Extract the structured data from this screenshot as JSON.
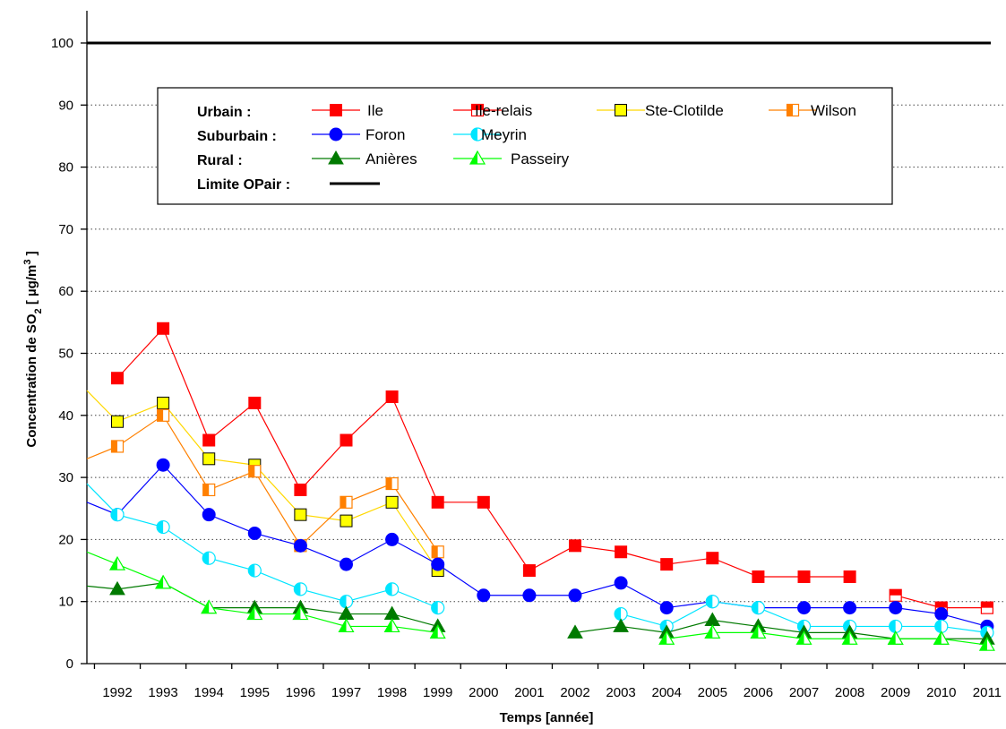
{
  "chart_data": {
    "type": "line",
    "xlabel": "Temps [année]",
    "ylabel": "Concentration de SO",
    "ylabel_sub": "2",
    "ylabel_unit": " [ µg/m",
    "ylabel_sup": "3",
    "ylabel_end": " ]",
    "x": [
      "1992",
      "1993",
      "1994",
      "1995",
      "1996",
      "1997",
      "1998",
      "1999",
      "2000",
      "2001",
      "2002",
      "2003",
      "2004",
      "2005",
      "2006",
      "2007",
      "2008",
      "2009",
      "2010",
      "2011"
    ],
    "ylim": [
      0,
      100
    ],
    "yticks": [
      0,
      10,
      20,
      30,
      40,
      50,
      60,
      70,
      80,
      90,
      100
    ],
    "grid": "horizontal dotted",
    "legend_position": "top-center",
    "limit": {
      "label": "Limite OPair :",
      "value": 100,
      "color": "#000000"
    },
    "groups": {
      "urbain": "Urbain :",
      "suburbain": "Suburbain :",
      "rural": "Rural :"
    },
    "series": [
      {
        "name": "Ile",
        "group": "urbain",
        "color": "#ff0000",
        "marker": "square-filled",
        "start": null,
        "values": [
          46,
          54,
          36,
          42,
          28,
          36,
          43,
          26,
          26,
          15,
          19,
          18,
          16,
          17,
          14,
          14,
          14,
          null,
          null,
          null
        ]
      },
      {
        "name": "Ile-relais",
        "group": "urbain",
        "color": "#ff0000",
        "marker": "square-half-top",
        "start": null,
        "values": [
          null,
          null,
          null,
          null,
          null,
          null,
          null,
          null,
          null,
          null,
          null,
          null,
          null,
          null,
          null,
          null,
          null,
          11,
          9,
          9
        ]
      },
      {
        "name": "Ste-Clotilde",
        "group": "urbain",
        "color": "#ffff00",
        "marker": "square-yellow",
        "start": 44,
        "values": [
          39,
          42,
          33,
          32,
          24,
          23,
          26,
          15,
          null,
          null,
          null,
          null,
          null,
          null,
          null,
          null,
          null,
          null,
          null,
          null
        ]
      },
      {
        "name": "Wilson",
        "group": "urbain",
        "color": "#ff8000",
        "marker": "square-half-left",
        "start": 33,
        "values": [
          35,
          40,
          28,
          31,
          19,
          26,
          29,
          18,
          null,
          null,
          null,
          null,
          null,
          null,
          null,
          null,
          null,
          null,
          null,
          null
        ]
      },
      {
        "name": "Foron",
        "group": "suburbain",
        "color": "#0000ff",
        "marker": "circle-filled",
        "start": 26,
        "values": [
          24,
          32,
          24,
          21,
          19,
          16,
          20,
          16,
          11,
          11,
          11,
          13,
          9,
          10,
          9,
          9,
          9,
          9,
          8,
          6
        ]
      },
      {
        "name": "Meyrin",
        "group": "suburbain",
        "color": "#00e5ff",
        "marker": "circle-half",
        "start": 29,
        "values": [
          24,
          22,
          17,
          15,
          12,
          10,
          12,
          9,
          null,
          null,
          null,
          8,
          6,
          10,
          9,
          6,
          6,
          6,
          6,
          5
        ]
      },
      {
        "name": "Anières",
        "group": "rural",
        "color": "#007a00",
        "marker": "triangle-filled",
        "start": 12.5,
        "values": [
          12,
          13,
          9,
          9,
          9,
          8,
          8,
          6,
          null,
          null,
          5,
          6,
          5,
          7,
          6,
          5,
          5,
          4,
          4,
          4
        ]
      },
      {
        "name": "Passeiry",
        "group": "rural",
        "color": "#00ff00",
        "marker": "triangle-half",
        "start": 18,
        "values": [
          16,
          13,
          9,
          8,
          8,
          6,
          6,
          5,
          null,
          null,
          null,
          null,
          4,
          5,
          5,
          4,
          4,
          4,
          4,
          3
        ]
      }
    ]
  }
}
